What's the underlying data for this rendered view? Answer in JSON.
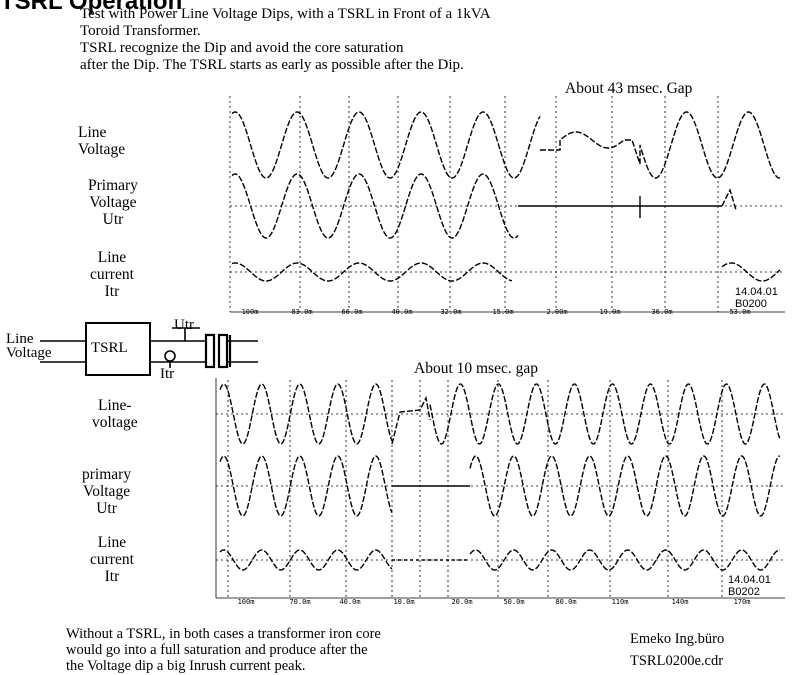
{
  "heading_partial": "TSRL Operation",
  "intro": [
    "Test with Power Line Voltage Dips, with a  TSRL in Front of a 1kVA",
    "Toroid Transformer.",
    "TSRL recognize the Dip  and avoid the core saturation",
    "after the Dip. The  TSRL starts  as early as  possible after the Dip."
  ],
  "panel1": {
    "gap_text": "About  43 msec. Gap",
    "labels": {
      "line_voltage": [
        "Line",
        "Voltage"
      ],
      "primary_voltage": [
        "Primary",
        "Voltage",
        "Utr"
      ],
      "line_current": [
        "Line",
        "current",
        "Itr"
      ]
    },
    "ticks": [
      "100m",
      "83.0m",
      "66.0m",
      "40.0m",
      "32.0m",
      "15.0m",
      "2.00m",
      "19.0m",
      "36.0m",
      "53.0m"
    ],
    "stamp": [
      "14.04.01",
      "B0200"
    ]
  },
  "schematic": {
    "input_label": [
      "Line",
      "Voltage"
    ],
    "box_label": "TSRL",
    "voltage_label": "Utr",
    "current_label": "Itr"
  },
  "panel2": {
    "gap_text": "About  10 msec.  gap",
    "labels": {
      "line_voltage": [
        "Line-",
        "voltage"
      ],
      "primary_voltage": [
        "primary",
        "Voltage",
        "Utr"
      ],
      "line_current": [
        "Line",
        "current",
        "Itr"
      ]
    },
    "ticks": [
      "100m",
      "70.0m",
      "40.0m",
      "10.0m",
      "20.0m",
      "50.0m",
      "80.0m",
      "110m",
      "140m",
      "170m"
    ],
    "stamp": [
      "14.04.01",
      "B0202"
    ]
  },
  "footer": [
    "Without a TSRL, in both cases a transformer iron core",
    "would go into a full  saturation  and produce after the",
    "the Voltage dip a big Inrush current peak."
  ],
  "credit": {
    "company": "Emeko Ing.büro",
    "file": "TSRL0200e.cdr"
  }
}
